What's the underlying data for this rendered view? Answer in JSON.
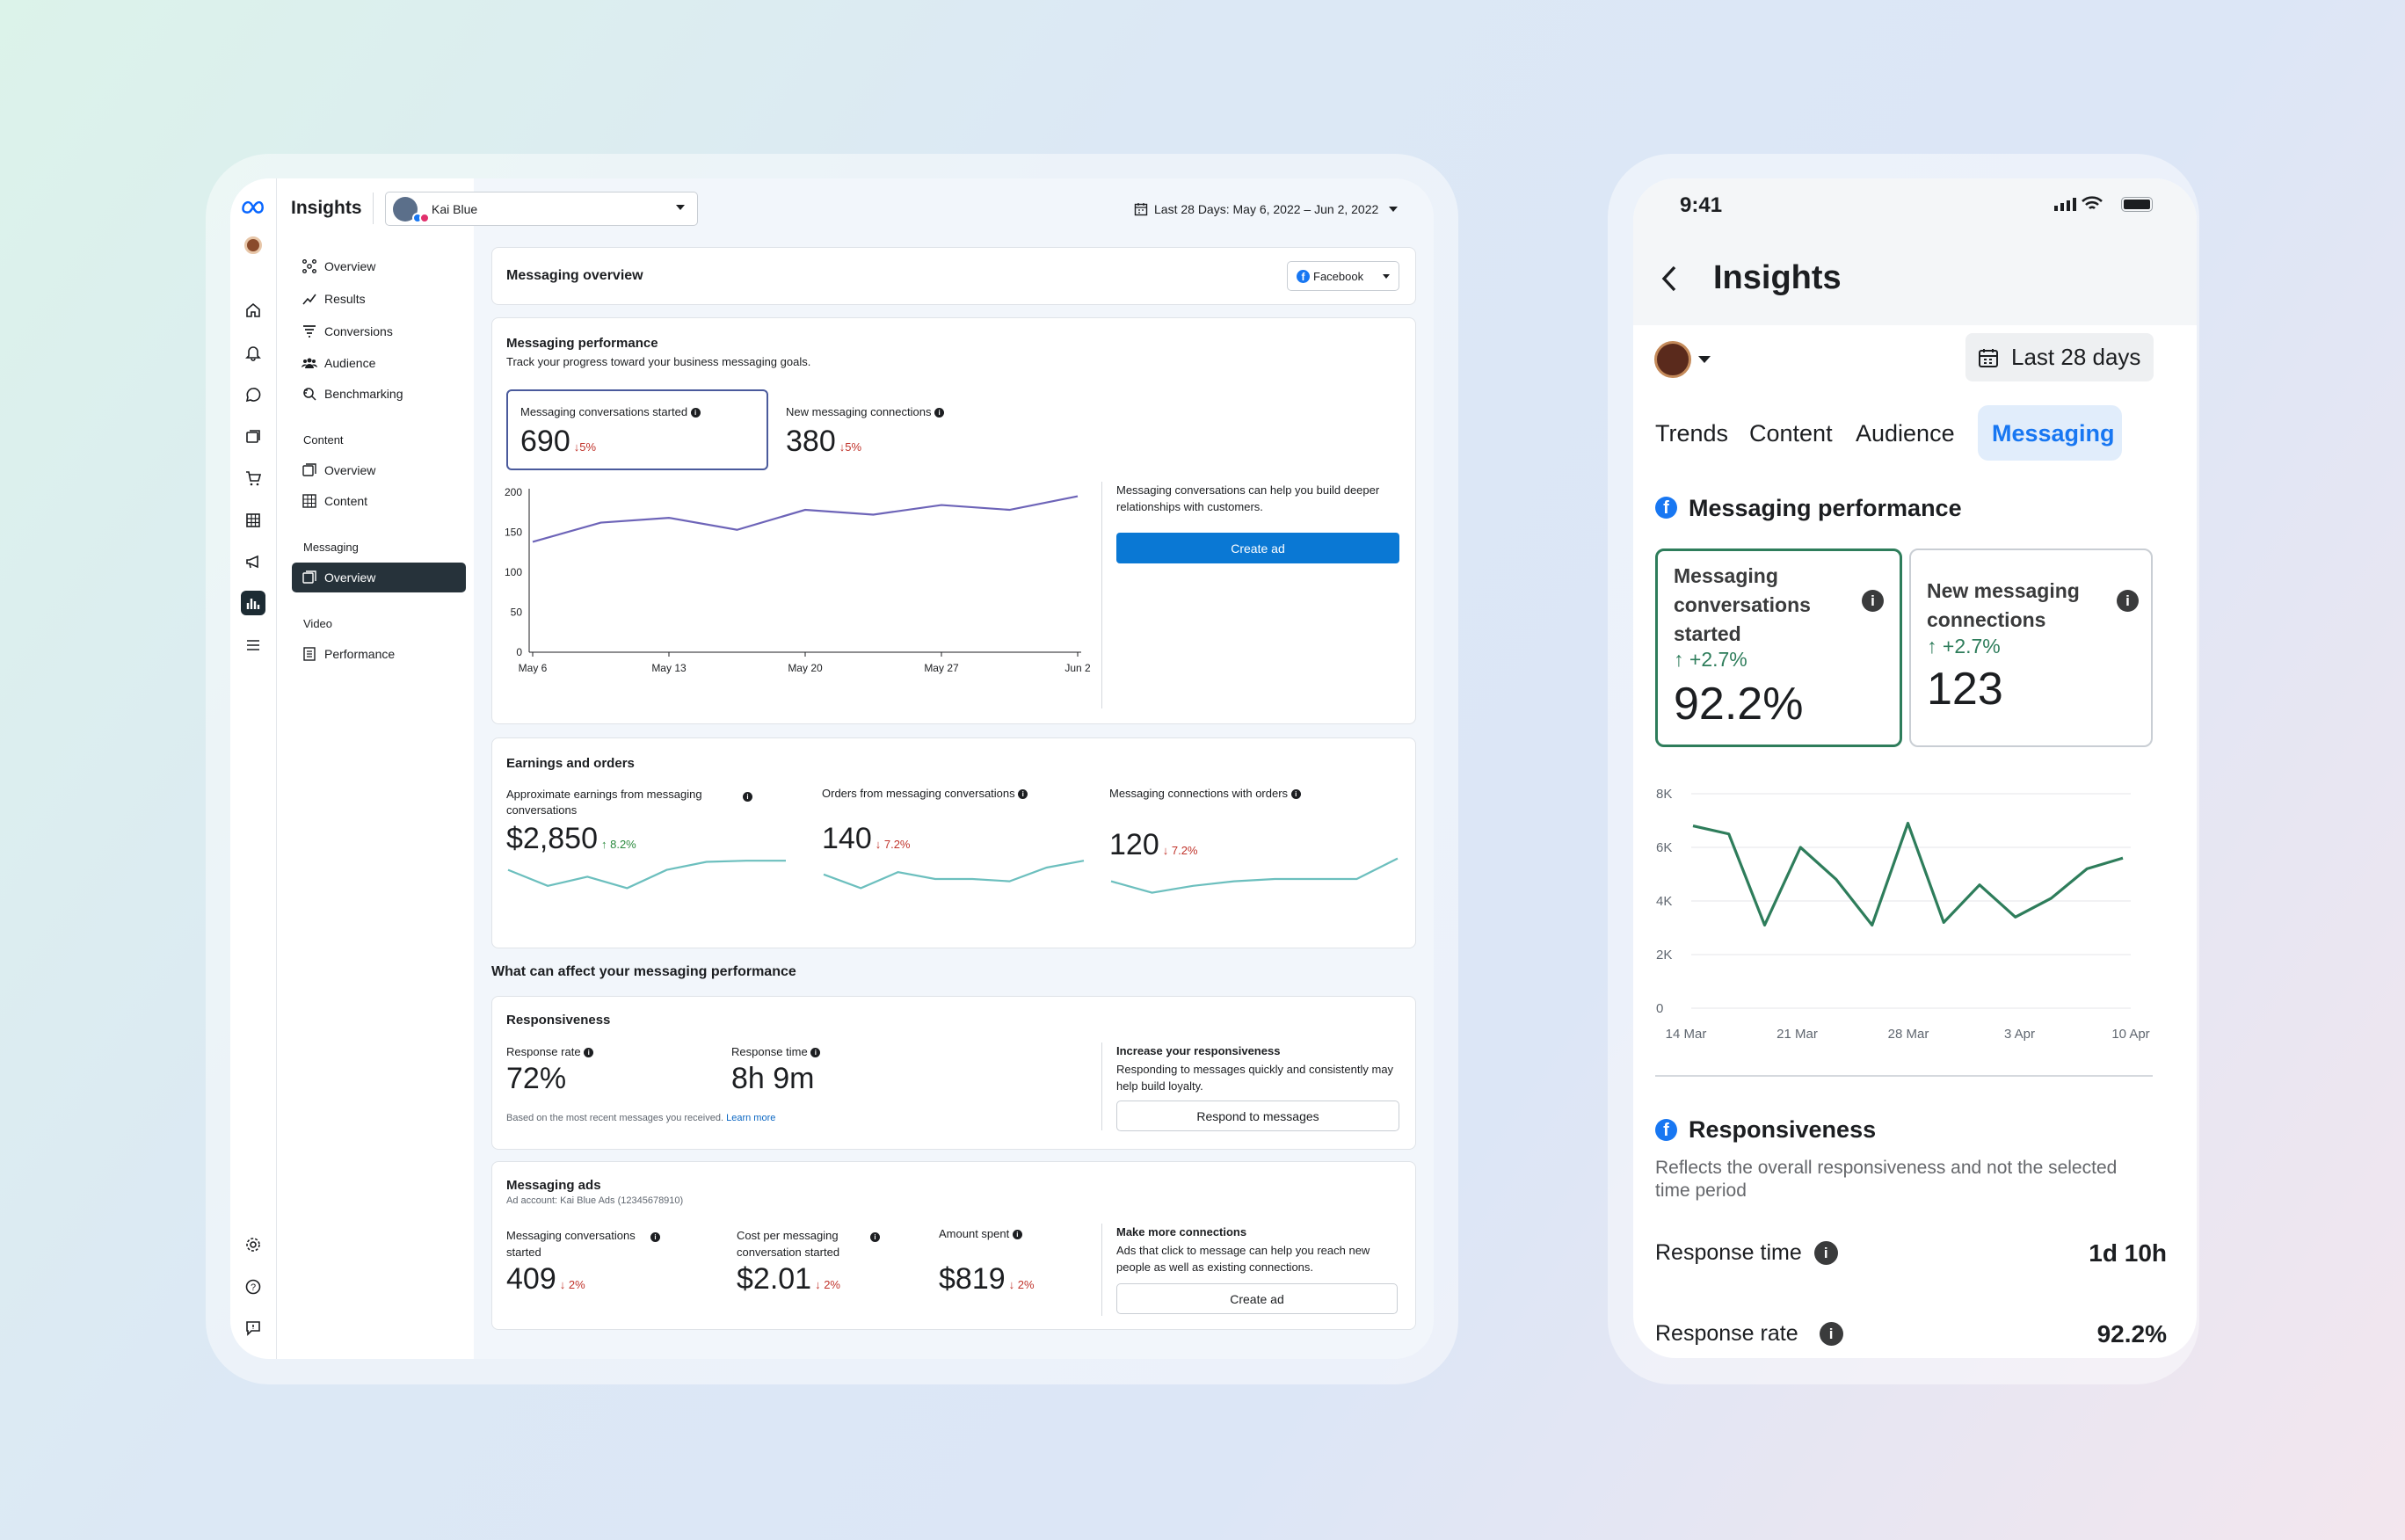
{
  "desktop": {
    "app_title": "Insights",
    "account_name": "Kai Blue",
    "date_range": "Last 28 Days: May 6, 2022 – Jun 2, 2022",
    "nav": {
      "items": [
        {
          "label": "Overview",
          "icon": "overview-icon"
        },
        {
          "label": "Results",
          "icon": "results-icon"
        },
        {
          "label": "Conversions",
          "icon": "funnel-icon"
        },
        {
          "label": "Audience",
          "icon": "people-icon"
        },
        {
          "label": "Benchmarking",
          "icon": "benchmark-icon"
        }
      ],
      "sections": [
        {
          "title": "Content",
          "items": [
            {
              "label": "Overview"
            },
            {
              "label": "Content"
            }
          ]
        },
        {
          "title": "Messaging",
          "items": [
            {
              "label": "Overview"
            }
          ]
        },
        {
          "title": "Video",
          "items": [
            {
              "label": "Performance"
            }
          ]
        }
      ]
    },
    "header_card": {
      "title": "Messaging overview",
      "platform": "Facebook"
    },
    "performance": {
      "title": "Messaging performance",
      "subtitle": "Track your progress toward your business messaging goals.",
      "metrics": [
        {
          "label": "Messaging conversations started",
          "value": "690",
          "change": "↓5%"
        },
        {
          "label": "New messaging connections",
          "value": "380",
          "change": "↓5%"
        }
      ],
      "side_text": "Messaging conversations can help you build deeper relationships with customers.",
      "cta": "Create ad"
    },
    "earnings": {
      "title": "Earnings and orders",
      "metrics": [
        {
          "label": "Approximate earnings from messaging conversations",
          "value": "$2,850",
          "change": "↑ 8.2%",
          "trend": [
            28,
            14,
            22,
            12,
            28,
            35,
            36,
            36
          ]
        },
        {
          "label": "Orders from messaging conversations",
          "value": "140",
          "change": "↓ 7.2%",
          "trend": [
            24,
            12,
            26,
            20,
            20,
            18,
            30,
            36
          ]
        },
        {
          "label": "Messaging connections with orders",
          "value": "120",
          "change": "↓ 7.2%",
          "trend": [
            18,
            8,
            14,
            18,
            20,
            20,
            20,
            38
          ]
        }
      ]
    },
    "affect_title": "What can affect your messaging performance",
    "responsiveness": {
      "title": "Responsiveness",
      "metrics": [
        {
          "label": "Response rate",
          "value": "72%"
        },
        {
          "label": "Response time",
          "value": "8h 9m"
        }
      ],
      "footnote": "Based on the most recent messages you received.",
      "learn_more": "Learn more",
      "side_title": "Increase your responsiveness",
      "side_text": "Responding to messages quickly and consistently may help build loyalty.",
      "cta": "Respond to messages"
    },
    "ads": {
      "title": "Messaging ads",
      "account": "Ad account: Kai Blue Ads (12345678910)",
      "metrics": [
        {
          "label": "Messaging conversations started",
          "value": "409",
          "change": "↓ 2%"
        },
        {
          "label": "Cost per messaging conversation started",
          "value": "$2.01",
          "change": "↓ 2%"
        },
        {
          "label": "Amount spent",
          "value": "$819",
          "change": "↓ 2%"
        }
      ],
      "side_title": "Make more connections",
      "side_text": "Ads that click to message can help you reach new people as well as existing connections.",
      "cta": "Create ad"
    }
  },
  "desktop_chart": {
    "type": "line",
    "x_ticks": [
      "May 6",
      "May 13",
      "May 20",
      "May 27",
      "Jun 2"
    ],
    "y_ticks": [
      "200",
      "150",
      "100",
      "50",
      "0"
    ],
    "ylim": [
      0,
      200
    ],
    "values": [
      138,
      162,
      168,
      153,
      178,
      172,
      184,
      178,
      195
    ],
    "color": "#6d64b8"
  },
  "phone": {
    "time": "9:41",
    "title": "Insights",
    "date_button": "Last 28 days",
    "tabs": [
      "Trends",
      "Content",
      "Audience",
      "Messaging"
    ],
    "active_tab": "Messaging",
    "section_title": "Messaging performance",
    "metrics": [
      {
        "label": "Messaging conversations started",
        "change": "+2.7%",
        "value": "92.2%"
      },
      {
        "label": "New messaging connections",
        "change": "+2.7%",
        "value": "123"
      }
    ],
    "responsiveness": {
      "title": "Responsiveness",
      "subtitle": "Reflects the overall responsiveness and not the selected time period",
      "rows": [
        {
          "label": "Response time",
          "value": "1d 10h"
        },
        {
          "label": "Response rate",
          "value": "92.2%"
        }
      ]
    }
  },
  "chart_data": {
    "type": "line",
    "x_ticks": [
      "14 Mar",
      "21 Mar",
      "28 Mar",
      "3 Apr",
      "10 Apr"
    ],
    "y_ticks": [
      "8K",
      "6K",
      "4K",
      "2K",
      "0"
    ],
    "ylim": [
      0,
      8000
    ],
    "values": [
      6800,
      6500,
      3100,
      6000,
      4800,
      3100,
      6900,
      3200,
      4600,
      3400,
      4100,
      5200,
      5600
    ],
    "color": "#2e7d5b",
    "grid": true
  },
  "colors": {
    "accent_blue": "#0a78d4",
    "phone_tab_active": "#1877f2",
    "green": "#2e7d5b"
  }
}
